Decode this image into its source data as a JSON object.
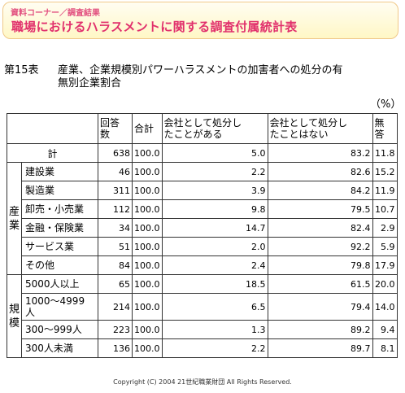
{
  "banner": {
    "subtitle": "資料コーナー／調査結果",
    "title": "職場におけるハラスメントに関する調査付属統計表"
  },
  "caption": {
    "number": "第15表",
    "line1": "産業、企業規模別パワーハラスメントの加害者への処分の有",
    "line2": "無別企業割合"
  },
  "unit": "（%）",
  "table": {
    "headers": {
      "count": "回答\n数",
      "total": "合計",
      "punished": "会社として処分し\nたことがある",
      "not_punished": "会社として処分し\nたことはない",
      "none": "無\n答"
    },
    "total_row": {
      "label": "計",
      "count": "638",
      "total": "100.0",
      "punished": "5.0",
      "not_punished": "83.2",
      "none": "11.8"
    },
    "groups": [
      {
        "label": "産\n業",
        "rows": [
          {
            "label": "建設業",
            "count": "46",
            "total": "100.0",
            "punished": "2.2",
            "not_punished": "82.6",
            "none": "15.2"
          },
          {
            "label": "製造業",
            "count": "311",
            "total": "100.0",
            "punished": "3.9",
            "not_punished": "84.2",
            "none": "11.9"
          },
          {
            "label": "卸売・小売業",
            "count": "112",
            "total": "100.0",
            "punished": "9.8",
            "not_punished": "79.5",
            "none": "10.7"
          },
          {
            "label": "金融・保険業",
            "count": "34",
            "total": "100.0",
            "punished": "14.7",
            "not_punished": "82.4",
            "none": "2.9"
          },
          {
            "label": "サービス業",
            "count": "51",
            "total": "100.0",
            "punished": "2.0",
            "not_punished": "92.2",
            "none": "5.9"
          },
          {
            "label": "その他",
            "count": "84",
            "total": "100.0",
            "punished": "2.4",
            "not_punished": "79.8",
            "none": "17.9"
          }
        ]
      },
      {
        "label": "規\n模",
        "rows": [
          {
            "label": "5000人以上",
            "count": "65",
            "total": "100.0",
            "punished": "18.5",
            "not_punished": "61.5",
            "none": "20.0"
          },
          {
            "label": "1000～4999\n人",
            "count": "214",
            "total": "100.0",
            "punished": "6.5",
            "not_punished": "79.4",
            "none": "14.0"
          },
          {
            "label": "300～999人",
            "count": "223",
            "total": "100.0",
            "punished": "1.3",
            "not_punished": "89.2",
            "none": "9.4"
          },
          {
            "label": "300人未満",
            "count": "136",
            "total": "100.0",
            "punished": "2.2",
            "not_punished": "89.7",
            "none": "8.1"
          }
        ]
      }
    ]
  },
  "copyright": "Copyright (C) 2004  21世紀職業財団 All Rights Reserved."
}
